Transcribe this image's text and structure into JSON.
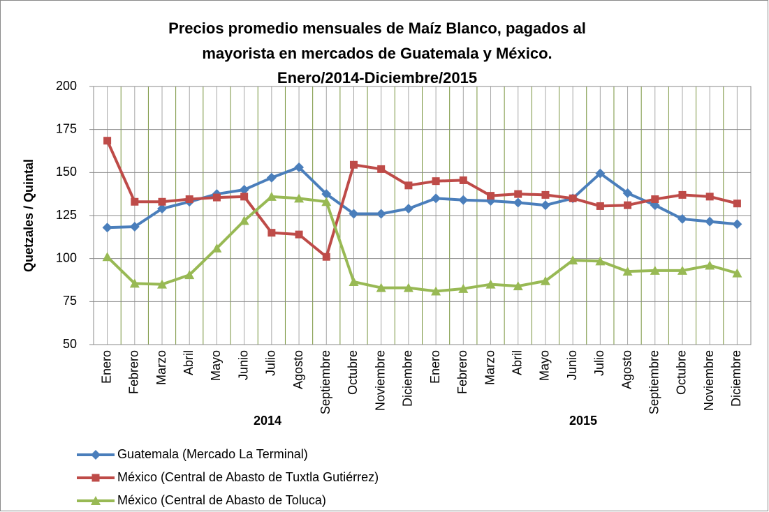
{
  "chart_data": {
    "type": "line",
    "title": [
      "Precios promedio mensuales de Maíz Blanco, pagados al",
      "mayorista en mercados de Guatemala y México.",
      "Enero/2014-Diciembre/2015"
    ],
    "y_label": "Quetzales / Quintal",
    "categories": [
      "Enero",
      "Febrero",
      "Marzo",
      "Abril",
      "Mayo",
      "Junio",
      "Julio",
      "Agosto",
      "Septiembre",
      "Octubre",
      "Noviembre",
      "Diciembre",
      "Enero",
      "Febrero",
      "Marzo",
      "Abril",
      "Mayo",
      "Junio",
      "Julio",
      "Agosto",
      "Septiembre",
      "Octubre",
      "Noviembre",
      "Diciembre"
    ],
    "year_labels": [
      "2014",
      "2015"
    ],
    "series": [
      {
        "name": "Guatemala (Mercado La Terminal)",
        "color": "#4a7ebb",
        "marker": "diamond",
        "values": [
          118,
          118.5,
          129,
          133,
          137.5,
          140,
          147,
          153,
          137.5,
          126,
          126,
          129,
          135,
          134,
          133.5,
          132.5,
          131,
          135,
          149.5,
          138,
          131,
          123,
          121.5,
          120
        ]
      },
      {
        "name": "México (Central de Abasto de Tuxtla Gutiérrez)",
        "color": "#be4b48",
        "marker": "square",
        "values": [
          168.5,
          133,
          133,
          134.5,
          135.5,
          136,
          115,
          114,
          101,
          154.5,
          152,
          142.5,
          145,
          145.5,
          136.5,
          137.5,
          137,
          135,
          130.5,
          131,
          134.5,
          137,
          136,
          132
        ]
      },
      {
        "name": "México (Central de Abasto de Toluca)",
        "color": "#98b954",
        "marker": "triangle",
        "values": [
          101,
          85.5,
          85,
          90.5,
          106,
          122,
          136,
          135,
          133,
          86.5,
          83,
          83,
          81,
          82.5,
          85,
          84,
          87,
          99,
          98.5,
          92.5,
          93,
          93,
          96,
          91.5
        ]
      }
    ],
    "ylim": [
      50,
      200
    ],
    "yticks": [
      50,
      75,
      100,
      125,
      150,
      175,
      200
    ],
    "grid": true
  }
}
